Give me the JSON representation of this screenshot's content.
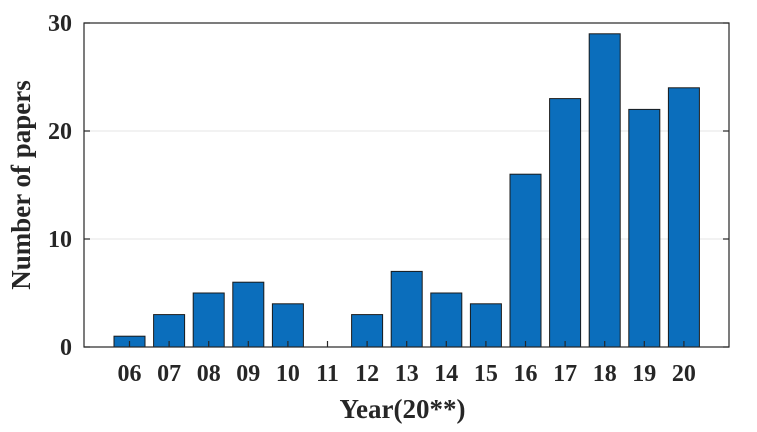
{
  "chart_data": {
    "type": "bar",
    "categories": [
      "06",
      "07",
      "08",
      "09",
      "10",
      "11",
      "12",
      "13",
      "14",
      "15",
      "16",
      "17",
      "18",
      "19",
      "20"
    ],
    "values": [
      1,
      3,
      5,
      6,
      4,
      0,
      3,
      7,
      5,
      4,
      16,
      23,
      29,
      22,
      24
    ],
    "title": "",
    "xlabel": "Year(20**)",
    "ylabel": "Number of papers",
    "ylim": [
      0,
      30
    ],
    "yticks": [
      "0",
      "10",
      "20",
      "30"
    ],
    "grid": "horizontal",
    "colors": {
      "bar": "#0b6ebc",
      "bar_edge": "#1a1a1a",
      "grid": "#e6e6e6",
      "text": "#262626"
    }
  }
}
